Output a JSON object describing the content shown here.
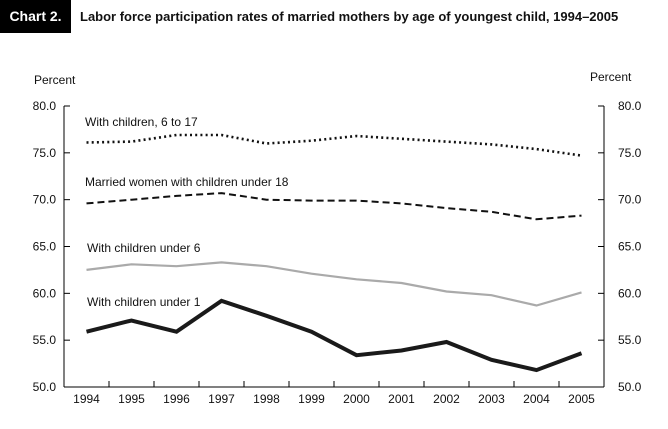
{
  "header": {
    "chart_label": "Chart 2.",
    "title": "Labor force participation rates of married mothers by age of youngest child, 1994–2005"
  },
  "chart_data": {
    "type": "line",
    "title": "Labor force participation rates of married mothers by age of youngest child, 1994–2005",
    "ylabel_left": "Percent",
    "ylabel_right": "Percent",
    "xlabel": "",
    "x": [
      "1994",
      "1995",
      "1996",
      "1997",
      "1998",
      "1999",
      "2000",
      "2001",
      "2002",
      "2003",
      "2004",
      "2005"
    ],
    "ylim": [
      50,
      80
    ],
    "yticks": [
      "50.0",
      "55.0",
      "60.0",
      "65.0",
      "70.0",
      "75.0",
      "80.0"
    ],
    "grid": false,
    "series": [
      {
        "name": "With children, 6 to 17",
        "style": "dotted",
        "color": "#111111",
        "values": [
          76.1,
          76.2,
          76.9,
          76.9,
          76.0,
          76.3,
          76.8,
          76.5,
          76.2,
          75.9,
          75.4,
          74.7
        ]
      },
      {
        "name": "Married women with children under 18",
        "style": "dashed",
        "color": "#111111",
        "values": [
          69.6,
          70.0,
          70.4,
          70.7,
          70.0,
          69.9,
          69.9,
          69.6,
          69.1,
          68.7,
          67.9,
          68.3
        ]
      },
      {
        "name": "With children under 6",
        "style": "solid",
        "color": "#aaaaaa",
        "values": [
          62.5,
          63.1,
          62.9,
          63.3,
          62.9,
          62.1,
          61.5,
          61.1,
          60.2,
          59.8,
          58.7,
          60.1
        ]
      },
      {
        "name": "With children under 1",
        "style": "solid-thick",
        "color": "#1a1a1a",
        "values": [
          55.9,
          57.1,
          55.9,
          59.2,
          57.6,
          55.9,
          53.4,
          53.9,
          54.8,
          52.9,
          51.8,
          53.6
        ]
      }
    ]
  }
}
